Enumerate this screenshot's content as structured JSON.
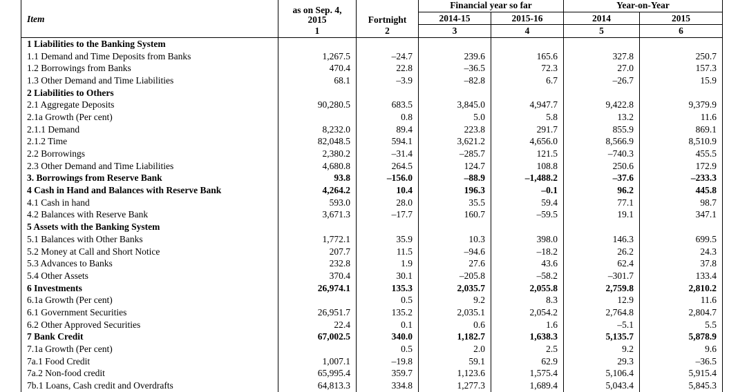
{
  "header": {
    "item_label": "Item",
    "as_on": "as on Sep. 4,\n2015",
    "fortnight": "Fortnight",
    "group_fy": "Financial year so far",
    "group_yoy": "Year-on-Year",
    "sub_cols": [
      "2014-15",
      "2015-16",
      "2014",
      "2015"
    ],
    "col_numbers": [
      "1",
      "2",
      "3",
      "4",
      "5",
      "6"
    ]
  },
  "rows": [
    {
      "item": "1 Liabilities to the Banking System",
      "bold": true,
      "values": [
        "",
        "",
        "",
        "",
        "",
        ""
      ]
    },
    {
      "item": "1.1 Demand and Time Deposits from Banks",
      "bold": false,
      "values": [
        "1,267.5",
        "–24.7",
        "239.6",
        "165.6",
        "327.8",
        "250.7"
      ]
    },
    {
      "item": "1.2 Borrowings from Banks",
      "bold": false,
      "values": [
        "470.4",
        "22.8",
        "–36.5",
        "72.3",
        "27.0",
        "157.3"
      ]
    },
    {
      "item": "1.3 Other Demand and Time Liabilities",
      "bold": false,
      "values": [
        "68.1",
        "–3.9",
        "–82.8",
        "6.7",
        "–26.7",
        "15.9"
      ]
    },
    {
      "item": "2 Liabilities to Others",
      "bold": true,
      "values": [
        "",
        "",
        "",
        "",
        "",
        ""
      ]
    },
    {
      "item": "2.1 Aggregate Deposits",
      "bold": false,
      "values": [
        "90,280.5",
        "683.5",
        "3,845.0",
        "4,947.7",
        "9,422.8",
        "9,379.9"
      ]
    },
    {
      "item": "2.1a Growth (Per cent)",
      "bold": false,
      "values": [
        "",
        "0.8",
        "5.0",
        "5.8",
        "13.2",
        "11.6"
      ]
    },
    {
      "item": "2.1.1 Demand",
      "bold": false,
      "values": [
        "8,232.0",
        "89.4",
        "223.8",
        "291.7",
        "855.9",
        "869.1"
      ]
    },
    {
      "item": "2.1.2 Time",
      "bold": false,
      "values": [
        "82,048.5",
        "594.1",
        "3,621.2",
        "4,656.0",
        "8,566.9",
        "8,510.9"
      ]
    },
    {
      "item": "2.2 Borrowings",
      "bold": false,
      "values": [
        "2,380.2",
        "–31.4",
        "–285.7",
        "121.5",
        "–740.3",
        "455.5"
      ]
    },
    {
      "item": "2.3 Other Demand and Time Liabilities",
      "bold": false,
      "values": [
        "4,680.8",
        "264.5",
        "124.7",
        "108.8",
        "250.6",
        "172.9"
      ]
    },
    {
      "item": "3. Borrowings from Reserve Bank",
      "bold": true,
      "values": [
        "93.8",
        "–156.0",
        "–88.9",
        "–1,488.2",
        "–37.6",
        "–233.3"
      ]
    },
    {
      "item": "4 Cash in Hand and Balances with Reserve Bank",
      "bold": true,
      "values": [
        "4,264.2",
        "10.4",
        "196.3",
        "–0.1",
        "96.2",
        "445.8"
      ]
    },
    {
      "item": "4.1 Cash in hand",
      "bold": false,
      "values": [
        "593.0",
        "28.0",
        "35.5",
        "59.4",
        "77.1",
        "98.7"
      ]
    },
    {
      "item": "4.2 Balances with Reserve Bank",
      "bold": false,
      "values": [
        "3,671.3",
        "–17.7",
        "160.7",
        "–59.5",
        "19.1",
        "347.1"
      ]
    },
    {
      "item": "5 Assets with the Banking System",
      "bold": true,
      "values": [
        "",
        "",
        "",
        "",
        "",
        ""
      ]
    },
    {
      "item": "5.1 Balances with Other Banks",
      "bold": false,
      "values": [
        "1,772.1",
        "35.9",
        "10.3",
        "398.0",
        "146.3",
        "699.5"
      ]
    },
    {
      "item": "5.2 Money at Call and Short Notice",
      "bold": false,
      "values": [
        "207.7",
        "11.5",
        "–94.6",
        "–18.2",
        "26.2",
        "24.3"
      ]
    },
    {
      "item": "5.3 Advances to Banks",
      "bold": false,
      "values": [
        "232.8",
        "1.9",
        "27.6",
        "43.6",
        "62.4",
        "37.8"
      ]
    },
    {
      "item": "5.4 Other Assets",
      "bold": false,
      "values": [
        "370.4",
        "30.1",
        "–205.8",
        "–58.2",
        "–301.7",
        "133.4"
      ]
    },
    {
      "item": "6 Investments",
      "bold": true,
      "values": [
        "26,974.1",
        "135.3",
        "2,035.7",
        "2,055.8",
        "2,759.8",
        "2,810.2"
      ]
    },
    {
      "item": "6.1a Growth (Per cent)",
      "bold": false,
      "values": [
        "",
        "0.5",
        "9.2",
        "8.3",
        "12.9",
        "11.6"
      ]
    },
    {
      "item": "6.1 Government Securities",
      "bold": false,
      "values": [
        "26,951.7",
        "135.2",
        "2,035.1",
        "2,054.2",
        "2,764.8",
        "2,804.7"
      ]
    },
    {
      "item": "6.2 Other Approved Securities",
      "bold": false,
      "values": [
        "22.4",
        "0.1",
        "0.6",
        "1.6",
        "–5.1",
        "5.5"
      ]
    },
    {
      "item": "7 Bank Credit",
      "bold": true,
      "values": [
        "67,002.5",
        "340.0",
        "1,182.7",
        "1,638.3",
        "5,135.7",
        "5,878.9"
      ]
    },
    {
      "item": "7.1a Growth (Per cent)",
      "bold": false,
      "values": [
        "",
        "0.5",
        "2.0",
        "2.5",
        "9.2",
        "9.6"
      ]
    },
    {
      "item": "7a.1 Food Credit",
      "bold": false,
      "values": [
        "1,007.1",
        "–19.8",
        "59.1",
        "62.9",
        "29.3",
        "–36.5"
      ]
    },
    {
      "item": "7a.2 Non-food credit",
      "bold": false,
      "values": [
        "65,995.4",
        "359.7",
        "1,123.6",
        "1,575.4",
        "5,106.4",
        "5,915.4"
      ]
    },
    {
      "item": "7b.1 Loans, Cash credit and Overdrafts",
      "bold": false,
      "values": [
        "64,813.3",
        "334.8",
        "1,277.3",
        "1,689.4",
        "5,043.4",
        "5,845.3"
      ]
    }
  ]
}
